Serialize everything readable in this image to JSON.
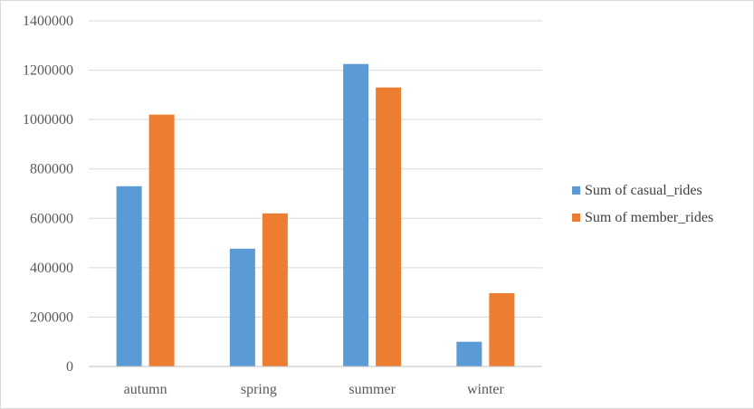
{
  "chart_data": {
    "type": "bar",
    "categories": [
      "autumn",
      "spring",
      "summer",
      "winter"
    ],
    "series": [
      {
        "name": "Sum of casual_rides",
        "values": [
          730000,
          477000,
          1225000,
          100000
        ],
        "color": "#5b9bd5"
      },
      {
        "name": "Sum of member_rides",
        "values": [
          1020000,
          620000,
          1130000,
          297000
        ],
        "color": "#ed7d31"
      }
    ],
    "ylim": [
      0,
      1400000
    ],
    "yticks": [
      0,
      200000,
      400000,
      600000,
      800000,
      1000000,
      1200000,
      1400000
    ],
    "grid": true,
    "legend": "right"
  }
}
